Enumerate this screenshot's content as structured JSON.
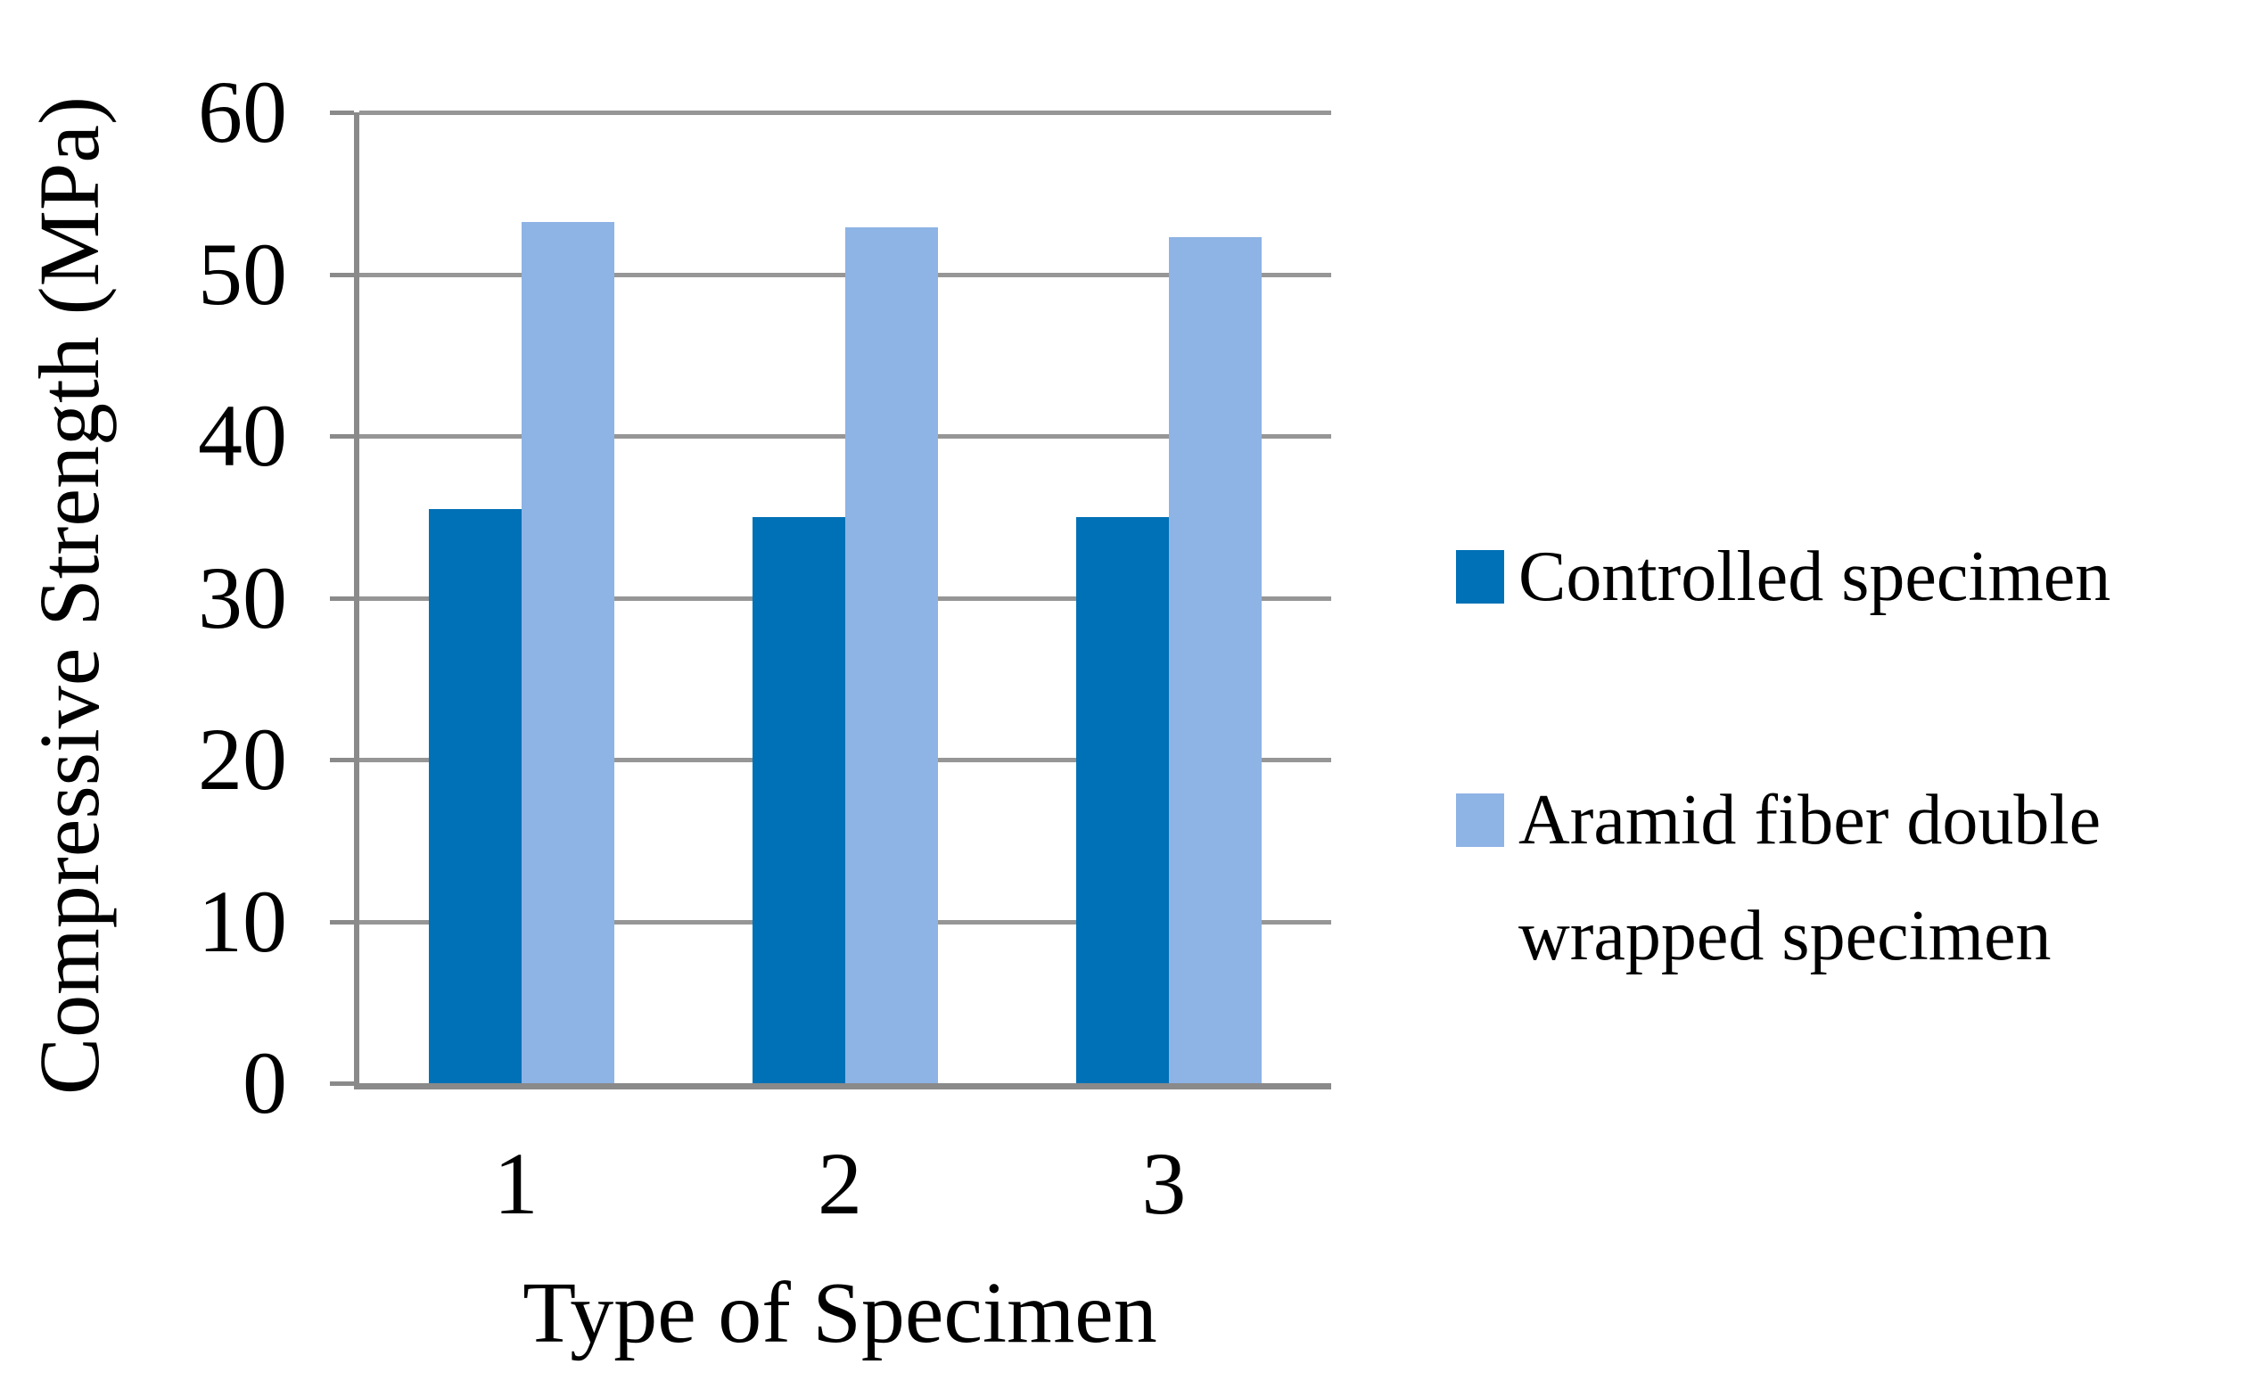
{
  "chart_data": {
    "type": "bar",
    "title": "",
    "xlabel": "Type of Specimen",
    "ylabel": "Compressive Strength (MPa)",
    "categories": [
      "1",
      "2",
      "3"
    ],
    "series": [
      {
        "name": "Controlled specimen",
        "color": "#0071B6",
        "values": [
          35.5,
          35.0,
          35.0
        ]
      },
      {
        "name": "Aramid fiber double wrapped specimen",
        "color": "#8EB3E5",
        "values": [
          53.2,
          52.9,
          52.3
        ]
      }
    ],
    "ylim": [
      0,
      60
    ],
    "yticks": [
      0,
      10,
      20,
      30,
      40,
      50,
      60
    ],
    "grid": true,
    "legend_position": "right",
    "colors": {
      "gridline": "#969696",
      "axis": "#8A8A8A",
      "text": "#000000",
      "background": "#FFFFFF"
    }
  }
}
